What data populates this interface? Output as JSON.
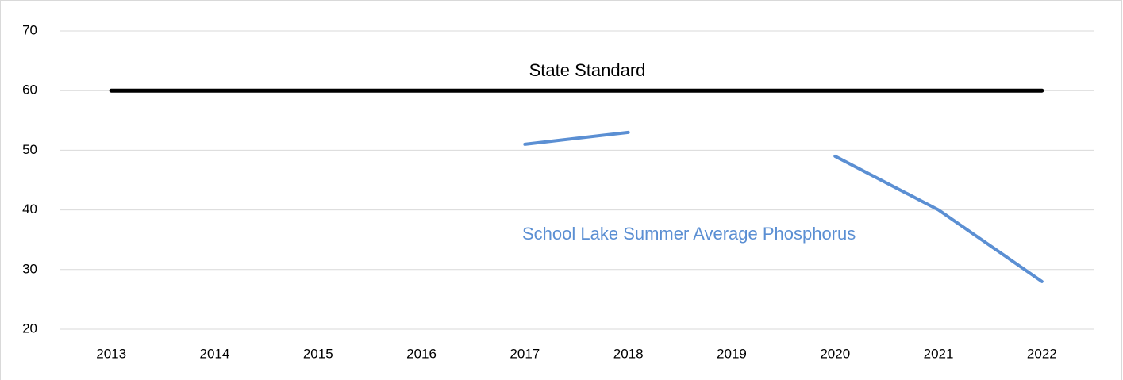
{
  "chart_data": {
    "type": "line",
    "categories": [
      "2013",
      "2014",
      "2015",
      "2016",
      "2017",
      "2018",
      "2019",
      "2020",
      "2021",
      "2022"
    ],
    "series": [
      {
        "name": "State Standard",
        "color": "#000000",
        "values": [
          60,
          60,
          60,
          60,
          60,
          60,
          60,
          60,
          60,
          60
        ]
      },
      {
        "name": "School Lake Summer Average Phosphorus",
        "color": "#5b8fd3",
        "values": [
          null,
          null,
          null,
          null,
          51,
          53,
          null,
          49,
          40,
          28
        ]
      }
    ],
    "ylim": [
      20,
      70
    ],
    "yticks": [
      20,
      30,
      40,
      50,
      60,
      70
    ],
    "grid": true
  }
}
